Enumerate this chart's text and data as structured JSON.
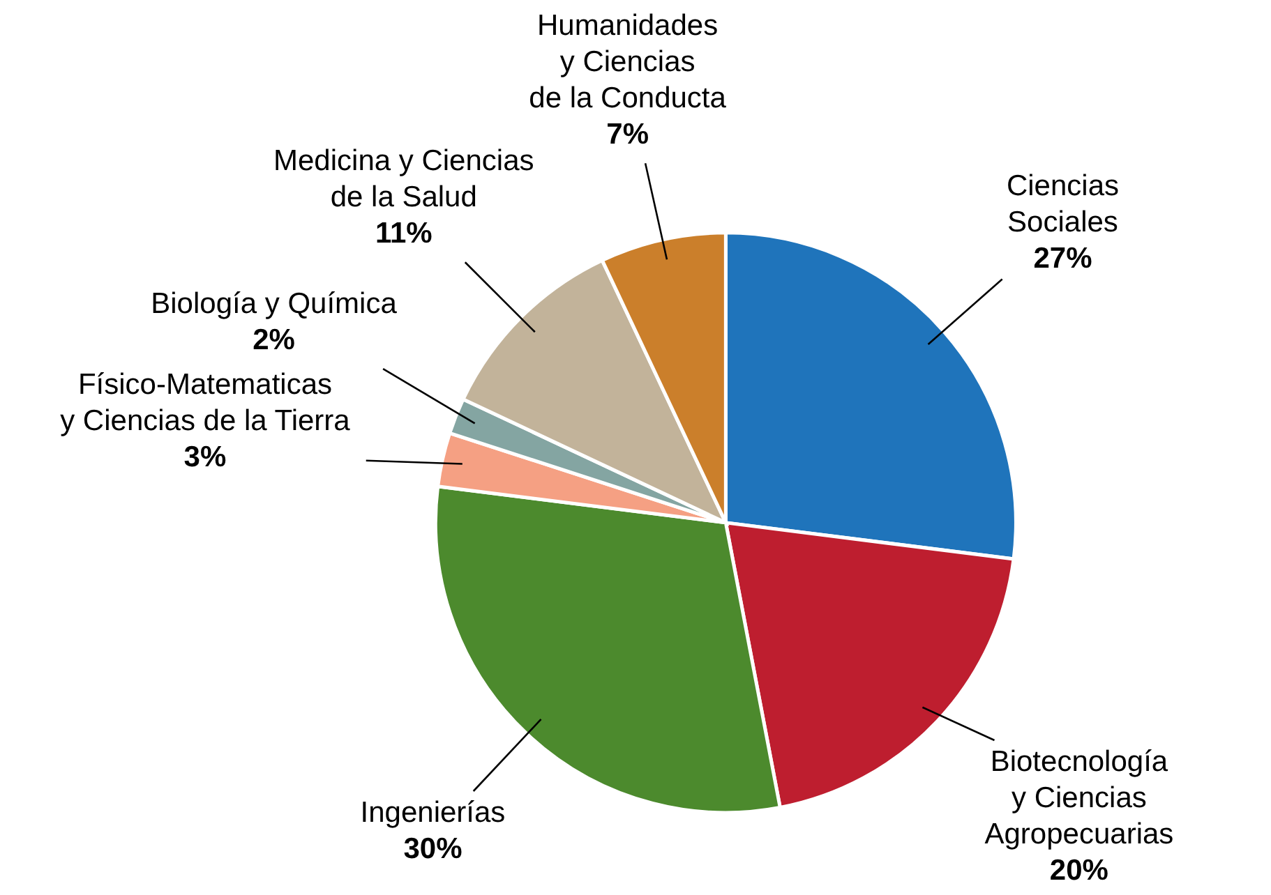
{
  "chart_data": {
    "type": "pie",
    "categories": [
      "Ciencias\nSociales",
      "Biotecnología\ny Ciencias\nAgropecuarias",
      "Ingenierías",
      "Físico-Matematicas\ny Ciencias de la Tierra",
      "Biología y Química",
      "Medicina y Ciencias\nde la Salud",
      "Humanidades\ny Ciencias\nde la Conducta"
    ],
    "values": [
      27,
      20,
      30,
      3,
      2,
      11,
      7
    ],
    "colors": [
      "#1f74bb",
      "#be1e2f",
      "#4c8a2d",
      "#f5a083",
      "#84a5a2",
      "#c2b39a",
      "#cb7f2b"
    ],
    "value_labels": [
      "27%",
      "20%",
      "30%",
      "3%",
      "2%",
      "11%",
      "7%"
    ]
  }
}
